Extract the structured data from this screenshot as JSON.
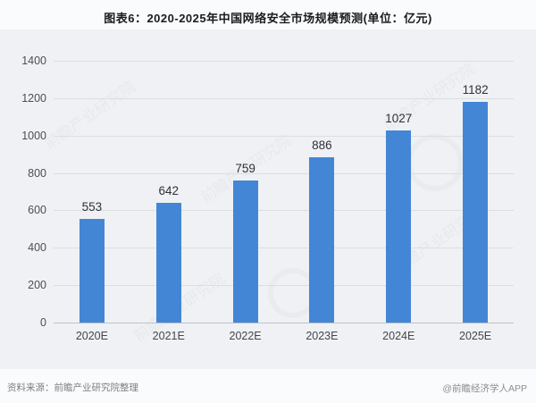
{
  "title": "图表6：2020-2025年中国网络安全市场规模预测(单位：亿元)",
  "chart_data": {
    "type": "bar",
    "title": "图表6：2020-2025年中国网络安全市场规模预测(单位：亿元)",
    "categories": [
      "2020E",
      "2021E",
      "2022E",
      "2023E",
      "2024E",
      "2025E"
    ],
    "values": [
      553,
      642,
      759,
      886,
      1027,
      1182
    ],
    "data_labels_shown": true,
    "xlabel": "",
    "ylabel": "",
    "unit": "亿元",
    "ylim": [
      0,
      1400
    ],
    "yticks": [
      0,
      200,
      400,
      600,
      800,
      1000,
      1200,
      1400
    ],
    "grid": true,
    "legend_position": "none",
    "bar_color": "#4386d6"
  },
  "footer": {
    "source": "资料来源：前瞻产业研究院整理",
    "credit": "@前瞻经济学人APP"
  },
  "watermark_text": "前瞻产业研究院",
  "colors": {
    "bar": "#4386d6",
    "plot_background": "#eff1f4",
    "page_background": "#fafbfc",
    "gridline": "#dcdee2",
    "axis_line": "#bfc2c7",
    "title_text": "#1b1b1e",
    "tick_text": "#4b4e55",
    "footer_text": "#7d8085"
  }
}
